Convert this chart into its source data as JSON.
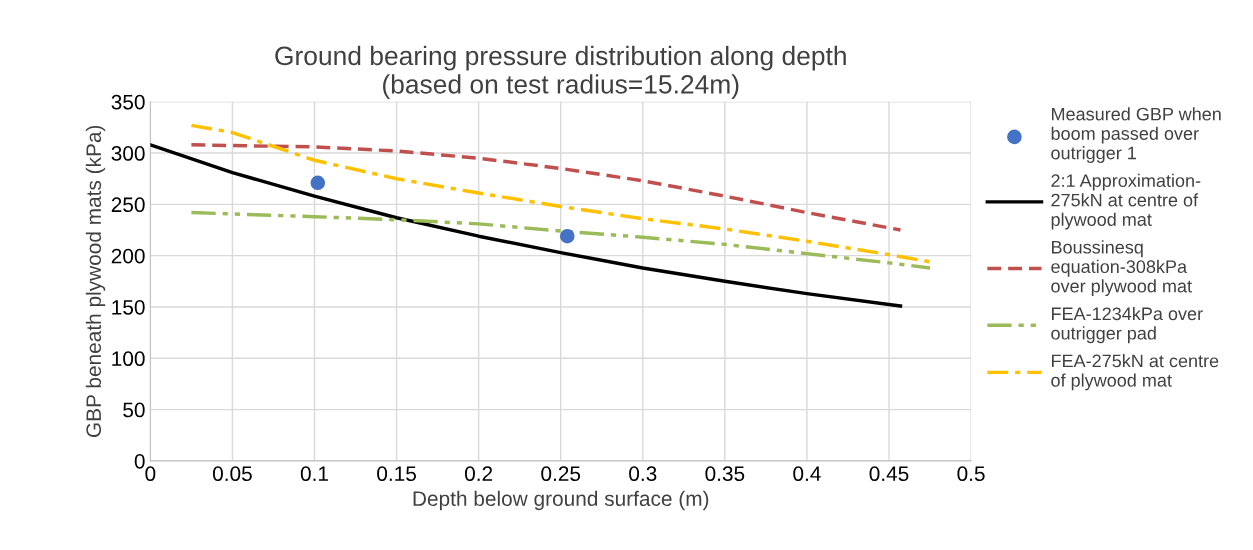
{
  "chart_data": {
    "type": "line",
    "title": "Ground bearing pressure distribution along depth\n(based on test radius=15.24m)",
    "xlabel": "Depth below ground surface (m)",
    "ylabel": "GBP beneath plywood mats (kPa)",
    "xlim": [
      0,
      0.5
    ],
    "xticks": [
      0,
      0.05,
      0.1,
      0.15,
      0.2,
      0.25,
      0.3,
      0.35,
      0.4,
      0.45,
      0.5
    ],
    "ylim": [
      0,
      350
    ],
    "yticks": [
      0,
      50,
      100,
      150,
      200,
      250,
      300,
      350
    ],
    "grid": true,
    "legend": "right",
    "series": [
      {
        "name": "Measured GBP when\nboom passed over\noutrigger 1",
        "type": "scatter",
        "marker": "circle",
        "color": "#4472c4",
        "x": [
          0.102,
          0.254
        ],
        "values": [
          271,
          219
        ]
      },
      {
        "name": "2:1 Approximation-\n275kN at centre of\nplywood mat",
        "color": "#000000",
        "line_style": "solid",
        "x": [
          0,
          0.05,
          0.1,
          0.15,
          0.2,
          0.25,
          0.3,
          0.35,
          0.4,
          0.457
        ],
        "values": [
          308,
          281,
          258,
          237,
          219,
          203,
          188,
          175,
          163,
          151
        ]
      },
      {
        "name": "Boussinesq\nequation-308kPa\nover plywood mat",
        "color": "#c0504d",
        "line_style": "dashed",
        "x": [
          0.025,
          0.1,
          0.15,
          0.2,
          0.25,
          0.3,
          0.35,
          0.4,
          0.457
        ],
        "values": [
          308,
          306,
          302,
          295,
          285,
          273,
          258,
          242,
          225
        ]
      },
      {
        "name": "FEA-1234kPa over\noutrigger pad",
        "color": "#9bbb59",
        "line_style": "dashdotdot",
        "x": [
          0.025,
          0.1,
          0.15,
          0.2,
          0.25,
          0.3,
          0.35,
          0.4,
          0.45,
          0.475
        ],
        "values": [
          242,
          238,
          235,
          231,
          224,
          218,
          211,
          202,
          193,
          188
        ]
      },
      {
        "name": "FEA-275kN at centre\nof plywood mat",
        "color": "#ffc000",
        "line_style": "dashdot",
        "x": [
          0.025,
          0.05,
          0.1,
          0.15,
          0.2,
          0.25,
          0.3,
          0.35,
          0.4,
          0.45,
          0.475
        ],
        "values": [
          327,
          320,
          293,
          275,
          261,
          248,
          236,
          226,
          214,
          201,
          194
        ]
      }
    ]
  }
}
